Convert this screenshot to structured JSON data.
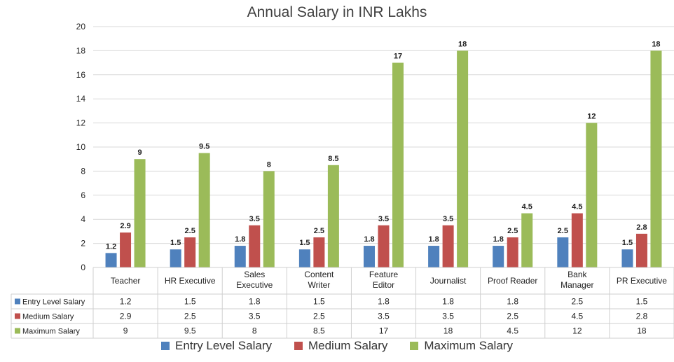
{
  "chart_data": {
    "type": "bar",
    "title": "Annual Salary in INR Lakhs",
    "categories": [
      [
        "Teacher"
      ],
      [
        "HR Executive"
      ],
      [
        "Sales",
        "Executive"
      ],
      [
        "Content",
        "Writer"
      ],
      [
        "Feature",
        "Editor"
      ],
      [
        "Journalist"
      ],
      [
        "Proof Reader"
      ],
      [
        "Bank",
        "Manager"
      ],
      [
        "PR Executive"
      ]
    ],
    "series": [
      {
        "name": "Entry Level Salary",
        "color": "#4f81bd",
        "values": [
          1.2,
          1.5,
          1.8,
          1.5,
          1.8,
          1.8,
          1.8,
          2.5,
          1.5
        ]
      },
      {
        "name": "Medium Salary",
        "color": "#c0504d",
        "values": [
          2.9,
          2.5,
          3.5,
          2.5,
          3.5,
          3.5,
          2.5,
          4.5,
          2.8
        ]
      },
      {
        "name": "Maximum Salary",
        "color": "#9bbb59",
        "values": [
          9,
          9.5,
          8,
          8.5,
          17,
          18,
          4.5,
          12,
          18
        ]
      }
    ],
    "ylim": [
      0,
      20
    ],
    "yticks": [
      0,
      2,
      4,
      6,
      8,
      10,
      12,
      14,
      16,
      18,
      20
    ],
    "grid": true,
    "data_table": true,
    "legend_position": "bottom"
  }
}
